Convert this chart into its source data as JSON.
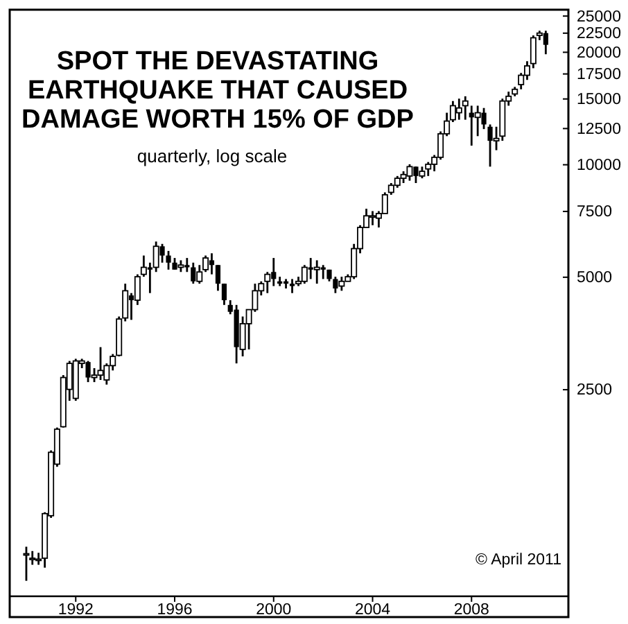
{
  "chart_data": {
    "type": "candlestick",
    "title": "SPOT THE DEVASTATING EARTHQUAKE THAT CAUSED DAMAGE WORTH 15% OF GDP",
    "subtitle": "quarterly, log scale",
    "annotations": [
      "© April 2011"
    ],
    "log": true,
    "grid": false,
    "x": [
      "1990-01",
      "1990-04",
      "1990-07",
      "1990-10",
      "1991-01",
      "1991-04",
      "1991-07",
      "1991-10",
      "1992-01",
      "1992-04",
      "1992-07",
      "1992-10",
      "1993-01",
      "1993-04",
      "1993-07",
      "1993-10",
      "1994-01",
      "1994-04",
      "1994-07",
      "1994-10",
      "1995-01",
      "1995-04",
      "1995-07",
      "1995-10",
      "1996-01",
      "1996-04",
      "1996-07",
      "1996-10",
      "1997-01",
      "1997-04",
      "1997-07",
      "1997-10",
      "1998-01",
      "1998-04",
      "1998-07",
      "1998-10",
      "1999-01",
      "1999-04",
      "1999-07",
      "1999-10",
      "2000-01",
      "2000-04",
      "2000-07",
      "2000-10",
      "2001-01",
      "2001-04",
      "2001-07",
      "2001-10",
      "2002-01",
      "2002-04",
      "2002-07",
      "2002-10",
      "2003-01",
      "2003-04",
      "2003-07",
      "2003-10",
      "2004-01",
      "2004-04",
      "2004-07",
      "2004-10",
      "2005-01",
      "2005-04",
      "2005-07",
      "2005-10",
      "2006-01",
      "2006-04",
      "2006-07",
      "2006-10",
      "2007-01",
      "2007-04",
      "2007-07",
      "2007-10",
      "2008-01",
      "2008-04",
      "2008-07",
      "2008-10",
      "2009-01",
      "2009-04",
      "2009-07",
      "2009-10",
      "2010-01",
      "2010-04",
      "2010-07",
      "2010-10",
      "2011-01"
    ],
    "ohlc": [
      [
        910,
        950,
        770,
        910
      ],
      [
        885,
        925,
        850,
        885
      ],
      [
        880,
        915,
        850,
        880
      ],
      [
        885,
        1175,
        835,
        1165
      ],
      [
        1150,
        1720,
        1135,
        1700
      ],
      [
        1580,
        1980,
        1555,
        1960
      ],
      [
        1990,
        2735,
        1980,
        2695
      ],
      [
        2505,
        2985,
        2335,
        2940
      ],
      [
        2370,
        3025,
        2335,
        2985
      ],
      [
        2940,
        3025,
        2855,
        2985
      ],
      [
        2965,
        2985,
        2620,
        2695
      ],
      [
        2695,
        2855,
        2620,
        2735
      ],
      [
        2735,
        3250,
        2655,
        2815
      ],
      [
        2655,
        2940,
        2580,
        2900
      ],
      [
        2900,
        3115,
        2815,
        3070
      ],
      [
        3090,
        3925,
        3070,
        3865
      ],
      [
        3890,
        4805,
        3810,
        4600
      ],
      [
        4470,
        4535,
        3845,
        4340
      ],
      [
        4340,
        5090,
        4215,
        5015
      ],
      [
        5090,
        5715,
        5015,
        5315
      ],
      [
        5315,
        5470,
        4535,
        5240
      ],
      [
        5315,
        6230,
        5165,
        6050
      ],
      [
        6050,
        6140,
        5470,
        5715
      ],
      [
        5715,
        5880,
        5240,
        5470
      ],
      [
        5470,
        5630,
        5240,
        5240
      ],
      [
        5315,
        5550,
        5165,
        5390
      ],
      [
        5390,
        5630,
        5165,
        5315
      ],
      [
        5315,
        5470,
        4805,
        4875
      ],
      [
        4875,
        5390,
        4805,
        5165
      ],
      [
        5240,
        5715,
        5165,
        5630
      ],
      [
        5550,
        5795,
        5090,
        5390
      ],
      [
        5390,
        5390,
        4600,
        4805
      ],
      [
        4805,
        4805,
        4215,
        4340
      ],
      [
        4215,
        4340,
        3980,
        4040
      ],
      [
        4095,
        4215,
        2940,
        3250
      ],
      [
        3205,
        3925,
        3070,
        3755
      ],
      [
        3755,
        4095,
        3205,
        4095
      ],
      [
        4095,
        4805,
        4040,
        4600
      ],
      [
        4600,
        4875,
        4470,
        4805
      ],
      [
        4875,
        5165,
        4535,
        5090
      ],
      [
        5165,
        5630,
        4735,
        4945
      ],
      [
        4875,
        5015,
        4735,
        4805
      ],
      [
        4875,
        4945,
        4665,
        4805
      ],
      [
        4805,
        4945,
        4535,
        4735
      ],
      [
        4805,
        5015,
        4735,
        4875
      ],
      [
        4875,
        5390,
        4805,
        5315
      ],
      [
        5315,
        5630,
        4945,
        5240
      ],
      [
        5240,
        5550,
        4805,
        5315
      ],
      [
        5315,
        5390,
        4945,
        5240
      ],
      [
        5240,
        5240,
        4875,
        4945
      ],
      [
        4945,
        5015,
        4535,
        4665
      ],
      [
        4735,
        5015,
        4600,
        4875
      ],
      [
        4875,
        5090,
        4875,
        5015
      ],
      [
        5015,
        6140,
        4945,
        5965
      ],
      [
        5965,
        6890,
        5795,
        6795
      ],
      [
        6795,
        7625,
        6795,
        7300
      ],
      [
        7300,
        7515,
        6890,
        7300
      ],
      [
        7195,
        7515,
        6795,
        7405
      ],
      [
        7405,
        8435,
        7405,
        8310
      ],
      [
        8435,
        8935,
        8310,
        8810
      ],
      [
        8810,
        9330,
        8680,
        9200
      ],
      [
        9200,
        9605,
        8935,
        9415
      ],
      [
        9330,
        10030,
        9065,
        9885
      ],
      [
        9885,
        9885,
        8935,
        9330
      ],
      [
        9330,
        9885,
        9200,
        9605
      ],
      [
        9745,
        10170,
        9330,
        10030
      ],
      [
        10030,
        10620,
        9605,
        10470
      ],
      [
        10470,
        12280,
        10320,
        12100
      ],
      [
        12100,
        13780,
        11930,
        13090
      ],
      [
        13200,
        14810,
        13010,
        14390
      ],
      [
        13780,
        15030,
        13200,
        14190
      ],
      [
        14390,
        15250,
        13200,
        14810
      ],
      [
        13780,
        14390,
        11250,
        13390
      ],
      [
        13390,
        14390,
        11930,
        13780
      ],
      [
        13780,
        14190,
        12460,
        12820
      ],
      [
        12640,
        12820,
        9885,
        11590
      ],
      [
        11590,
        12640,
        10940,
        11760
      ],
      [
        11930,
        15030,
        11590,
        14810
      ],
      [
        14810,
        15690,
        14390,
        15250
      ],
      [
        15470,
        16160,
        15250,
        15920
      ],
      [
        16390,
        17610,
        15920,
        17360
      ],
      [
        17360,
        18930,
        16870,
        18390
      ],
      [
        18660,
        22190,
        18130,
        21870
      ],
      [
        22190,
        22840,
        21560,
        22510
      ],
      [
        22510,
        22840,
        19760,
        20940
      ]
    ],
    "xlim": [
      "1989-05",
      "2011-12"
    ],
    "xticks": [
      {
        "value": "1992",
        "label": "1992"
      },
      {
        "value": "1996",
        "label": "1996"
      },
      {
        "value": "2000",
        "label": "2000"
      },
      {
        "value": "2004",
        "label": "2004"
      },
      {
        "value": "2008",
        "label": "2008"
      }
    ],
    "ylim": [
      700,
      26000
    ],
    "yticks": [
      2500,
      5000,
      7500,
      10000,
      12500,
      15000,
      17500,
      20000,
      22500,
      25000
    ]
  }
}
